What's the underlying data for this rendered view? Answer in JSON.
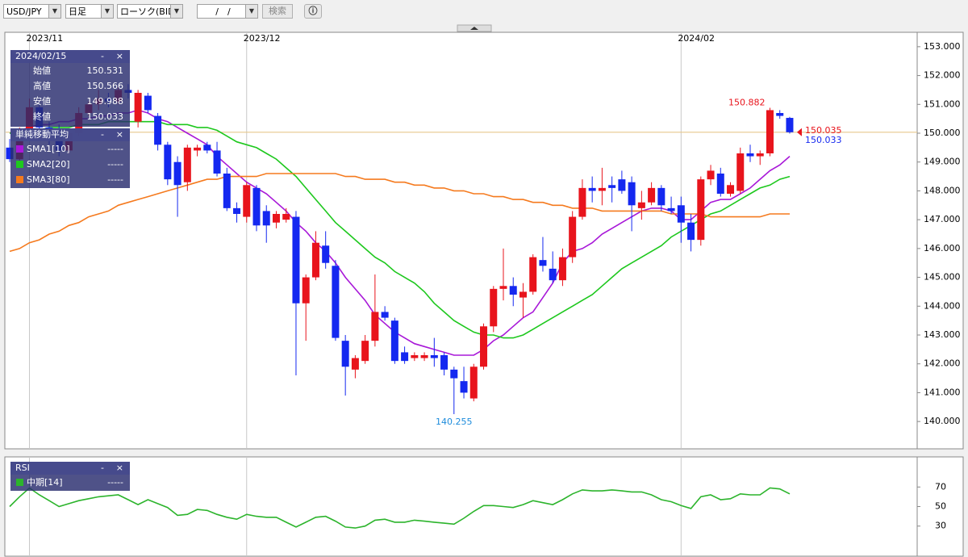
{
  "toolbar": {
    "pair": "USD/JPY",
    "period": "日足",
    "chart_type": "ローソク(BID)",
    "date": "/　/",
    "search": "検索"
  },
  "chart_data": [
    {
      "type": "candlestick",
      "categories": [
        null,
        null,
        "2023/11",
        null,
        null,
        null,
        null,
        null,
        null,
        null,
        null,
        null,
        null,
        null,
        null,
        null,
        null,
        null,
        null,
        null,
        null,
        null,
        null,
        null,
        "2023/12",
        null,
        null,
        null,
        null,
        null,
        null,
        null,
        null,
        null,
        null,
        null,
        null,
        null,
        null,
        null,
        null,
        null,
        null,
        null,
        null,
        null,
        null,
        null,
        null,
        null,
        null,
        null,
        null,
        null,
        null,
        null,
        null,
        null,
        null,
        null,
        null,
        null,
        null,
        null,
        null,
        null,
        null,
        null,
        "2024/02",
        null,
        null,
        null,
        null,
        null,
        null,
        null,
        null,
        null,
        null,
        null
      ],
      "ohlc": {
        "open": [
          149.5,
          149.1,
          150.0,
          150.9,
          150.2,
          150.0,
          149.4,
          150.0,
          150.7,
          151.0,
          151.2,
          151.1,
          151.5,
          150.4,
          151.3,
          150.6,
          149.6,
          149.0,
          148.3,
          149.4,
          149.6,
          149.4,
          148.6,
          147.4,
          147.1,
          148.1,
          147.3,
          146.9,
          147.0,
          147.1,
          144.1,
          145.0,
          146.1,
          145.4,
          142.8,
          141.8,
          142.1,
          142.8,
          143.8,
          143.5,
          142.4,
          142.2,
          142.2,
          142.3,
          142.3,
          141.8,
          141.4,
          140.8,
          141.9,
          143.3,
          144.6,
          144.7,
          144.3,
          144.5,
          145.6,
          145.3,
          144.9,
          145.7,
          147.1,
          148.1,
          148.0,
          148.2,
          148.4,
          148.3,
          147.4,
          147.6,
          148.1,
          147.4,
          147.5,
          146.9,
          146.3,
          148.4,
          148.6,
          147.9,
          148.0,
          149.3,
          149.2,
          149.3,
          150.7,
          150.531
        ],
        "high": [
          149.8,
          150.2,
          151.2,
          151.0,
          150.4,
          150.3,
          150.1,
          150.9,
          151.1,
          151.5,
          151.4,
          151.6,
          151.7,
          151.5,
          151.4,
          150.7,
          149.7,
          149.2,
          149.6,
          149.6,
          149.7,
          149.7,
          148.8,
          147.6,
          148.3,
          148.2,
          147.5,
          147.3,
          147.4,
          147.3,
          145.1,
          146.6,
          146.6,
          145.6,
          143.0,
          142.3,
          143.0,
          145.1,
          144.0,
          143.6,
          142.6,
          142.4,
          142.4,
          142.9,
          142.4,
          141.9,
          141.9,
          142.0,
          143.4,
          144.7,
          146.0,
          145.0,
          144.8,
          145.8,
          146.4,
          145.9,
          146.0,
          147.3,
          148.4,
          148.5,
          148.8,
          148.5,
          148.7,
          148.5,
          148.0,
          148.3,
          148.2,
          147.8,
          147.8,
          147.2,
          148.5,
          148.9,
          148.8,
          148.3,
          149.5,
          149.6,
          149.4,
          150.882,
          150.8,
          150.566
        ],
        "low": [
          149.0,
          149.0,
          149.9,
          150.0,
          149.6,
          149.2,
          149.3,
          149.9,
          150.6,
          150.8,
          150.9,
          151.0,
          151.2,
          150.2,
          150.7,
          149.4,
          148.2,
          147.1,
          148.0,
          149.2,
          149.3,
          148.5,
          147.3,
          146.9,
          146.9,
          146.6,
          146.2,
          146.7,
          146.9,
          141.6,
          142.8,
          144.9,
          145.3,
          142.8,
          140.9,
          141.5,
          142.0,
          142.6,
          143.5,
          142.0,
          142.0,
          142.1,
          142.1,
          141.9,
          141.6,
          140.255,
          140.8,
          140.7,
          141.8,
          143.1,
          144.2,
          144.0,
          143.6,
          144.4,
          145.2,
          144.8,
          144.7,
          145.5,
          147.0,
          147.6,
          147.5,
          147.6,
          147.9,
          146.6,
          147.0,
          147.5,
          147.3,
          147.2,
          146.2,
          145.9,
          146.1,
          148.2,
          147.8,
          147.8,
          147.9,
          149.0,
          148.9,
          149.2,
          150.5,
          149.988
        ],
        "close": [
          149.1,
          150.0,
          150.9,
          150.2,
          150.0,
          149.4,
          150.0,
          150.7,
          151.0,
          151.2,
          151.1,
          151.5,
          151.4,
          151.4,
          150.8,
          149.6,
          148.4,
          148.2,
          149.5,
          149.5,
          149.4,
          148.6,
          147.4,
          147.2,
          148.2,
          146.8,
          146.8,
          147.2,
          147.2,
          144.1,
          145.0,
          146.2,
          145.5,
          142.9,
          141.9,
          142.2,
          142.8,
          143.8,
          143.6,
          142.1,
          142.1,
          142.3,
          142.3,
          142.2,
          141.8,
          141.5,
          141.0,
          141.9,
          143.3,
          144.6,
          144.7,
          144.4,
          144.5,
          145.7,
          145.4,
          144.9,
          145.7,
          147.1,
          148.1,
          148.0,
          148.1,
          148.1,
          148.0,
          147.5,
          147.6,
          148.1,
          147.5,
          147.3,
          146.9,
          146.3,
          148.4,
          148.7,
          147.9,
          148.2,
          149.3,
          149.2,
          149.3,
          150.8,
          150.6,
          150.033
        ]
      },
      "up_color": "#e8141c",
      "down_color": "#1428f0",
      "lines": [
        {
          "name": "SMA1[10]",
          "color": "#a818d8",
          "value_text": "-----",
          "values": [
            150.0,
            150.1,
            150.2,
            150.3,
            150.3,
            150.4,
            150.4,
            150.5,
            150.5,
            150.6,
            150.6,
            150.7,
            150.7,
            150.8,
            150.7,
            150.5,
            150.4,
            150.2,
            150.0,
            149.8,
            149.6,
            149.2,
            148.9,
            148.6,
            148.3,
            148.1,
            147.9,
            147.6,
            147.3,
            146.9,
            146.6,
            146.2,
            145.9,
            145.5,
            145.0,
            144.6,
            144.2,
            143.7,
            143.4,
            143.1,
            142.9,
            142.7,
            142.6,
            142.5,
            142.4,
            142.3,
            142.3,
            142.3,
            142.5,
            142.8,
            143.0,
            143.3,
            143.6,
            143.8,
            144.3,
            144.8,
            145.5,
            145.9,
            146.0,
            146.2,
            146.5,
            146.7,
            146.9,
            147.1,
            147.3,
            147.4,
            147.4,
            147.3,
            147.0,
            147.0,
            147.3,
            147.6,
            147.7,
            147.7,
            147.9,
            148.1,
            148.4,
            148.7,
            148.9,
            149.2
          ]
        },
        {
          "name": "SMA2[20]",
          "color": "#1ec81e",
          "value_text": "-----",
          "values": [
            150.0,
            150.0,
            150.1,
            150.1,
            150.2,
            150.2,
            150.2,
            150.3,
            150.3,
            150.3,
            150.4,
            150.4,
            150.4,
            150.4,
            150.4,
            150.4,
            150.3,
            150.3,
            150.3,
            150.2,
            150.2,
            150.1,
            149.9,
            149.7,
            149.6,
            149.5,
            149.3,
            149.1,
            148.8,
            148.5,
            148.1,
            147.7,
            147.3,
            146.9,
            146.6,
            146.3,
            146.0,
            145.7,
            145.5,
            145.2,
            145.0,
            144.8,
            144.5,
            144.1,
            143.8,
            143.5,
            143.3,
            143.1,
            143.0,
            143.0,
            142.9,
            142.9,
            143.0,
            143.2,
            143.4,
            143.6,
            143.8,
            144.0,
            144.2,
            144.4,
            144.7,
            145.0,
            145.3,
            145.5,
            145.7,
            145.9,
            146.1,
            146.4,
            146.6,
            146.8,
            147.0,
            147.2,
            147.3,
            147.5,
            147.7,
            147.9,
            148.1,
            148.2,
            148.4,
            148.5
          ]
        },
        {
          "name": "SMA3[80]",
          "color": "#f57a1e",
          "value_text": "-----",
          "values": [
            145.9,
            146.0,
            146.2,
            146.3,
            146.5,
            146.6,
            146.8,
            146.9,
            147.1,
            147.2,
            147.3,
            147.5,
            147.6,
            147.7,
            147.8,
            147.9,
            148.0,
            148.1,
            148.2,
            148.3,
            148.4,
            148.4,
            148.5,
            148.5,
            148.5,
            148.5,
            148.6,
            148.6,
            148.6,
            148.6,
            148.6,
            148.6,
            148.6,
            148.6,
            148.5,
            148.5,
            148.4,
            148.4,
            148.4,
            148.3,
            148.3,
            148.2,
            148.2,
            148.1,
            148.1,
            148.0,
            148.0,
            147.9,
            147.9,
            147.8,
            147.8,
            147.7,
            147.7,
            147.6,
            147.6,
            147.5,
            147.5,
            147.4,
            147.4,
            147.4,
            147.3,
            147.3,
            147.3,
            147.3,
            147.3,
            147.3,
            147.3,
            147.2,
            147.2,
            147.2,
            147.2,
            147.1,
            147.1,
            147.1,
            147.1,
            147.1,
            147.1,
            147.2,
            147.2,
            147.2
          ]
        }
      ],
      "legend_title": "単純移動平均",
      "info_panel": {
        "date": "2024/02/15",
        "labels": [
          "始値",
          "高値",
          "安値",
          "終値"
        ]
      },
      "high_label": 150.882,
      "low_label": 140.255,
      "ask": 150.035,
      "bid": 150.033,
      "ylim": [
        139.08,
        153.5
      ],
      "yticks": [
        {
          "value": 153,
          "label": "153.000"
        },
        {
          "value": 152,
          "label": "152.000"
        },
        {
          "value": 151,
          "label": "151.000"
        },
        {
          "value": 150,
          "label": "150.000"
        },
        {
          "value": 149,
          "label": "149.000"
        },
        {
          "value": 148,
          "label": "148.000"
        },
        {
          "value": 147,
          "label": "147.000"
        },
        {
          "value": 146,
          "label": "146.000"
        },
        {
          "value": 145,
          "label": "145.000"
        },
        {
          "value": 144,
          "label": "144.000"
        },
        {
          "value": 143,
          "label": "143.000"
        },
        {
          "value": 142,
          "label": "142.000"
        },
        {
          "value": 141,
          "label": "141.000"
        },
        {
          "value": 140,
          "label": "140.000"
        }
      ]
    },
    {
      "type": "line",
      "title": "RSI",
      "series": [
        {
          "name": "中期[14]",
          "color": "#2cb42c",
          "value_text": "-----",
          "values": [
            50,
            60,
            69,
            62,
            56,
            50,
            53,
            56,
            58,
            60,
            61,
            62,
            57,
            52,
            57,
            53,
            49,
            41,
            42,
            47,
            46,
            42,
            39,
            37,
            42,
            40,
            39,
            39,
            34,
            29,
            34,
            39,
            40,
            35,
            29,
            28,
            30,
            36,
            37,
            34,
            34,
            36,
            35,
            34,
            33,
            32,
            38,
            45,
            51,
            51,
            50,
            49,
            52,
            56,
            54,
            52,
            57,
            63,
            67,
            66,
            66,
            67,
            66,
            65,
            65,
            62,
            57,
            55,
            51,
            48,
            60,
            62,
            57,
            58,
            63,
            62,
            62,
            69,
            68,
            63
          ]
        }
      ],
      "ylim": [
        0,
        100
      ],
      "yticks": [
        70,
        50,
        30
      ]
    }
  ]
}
